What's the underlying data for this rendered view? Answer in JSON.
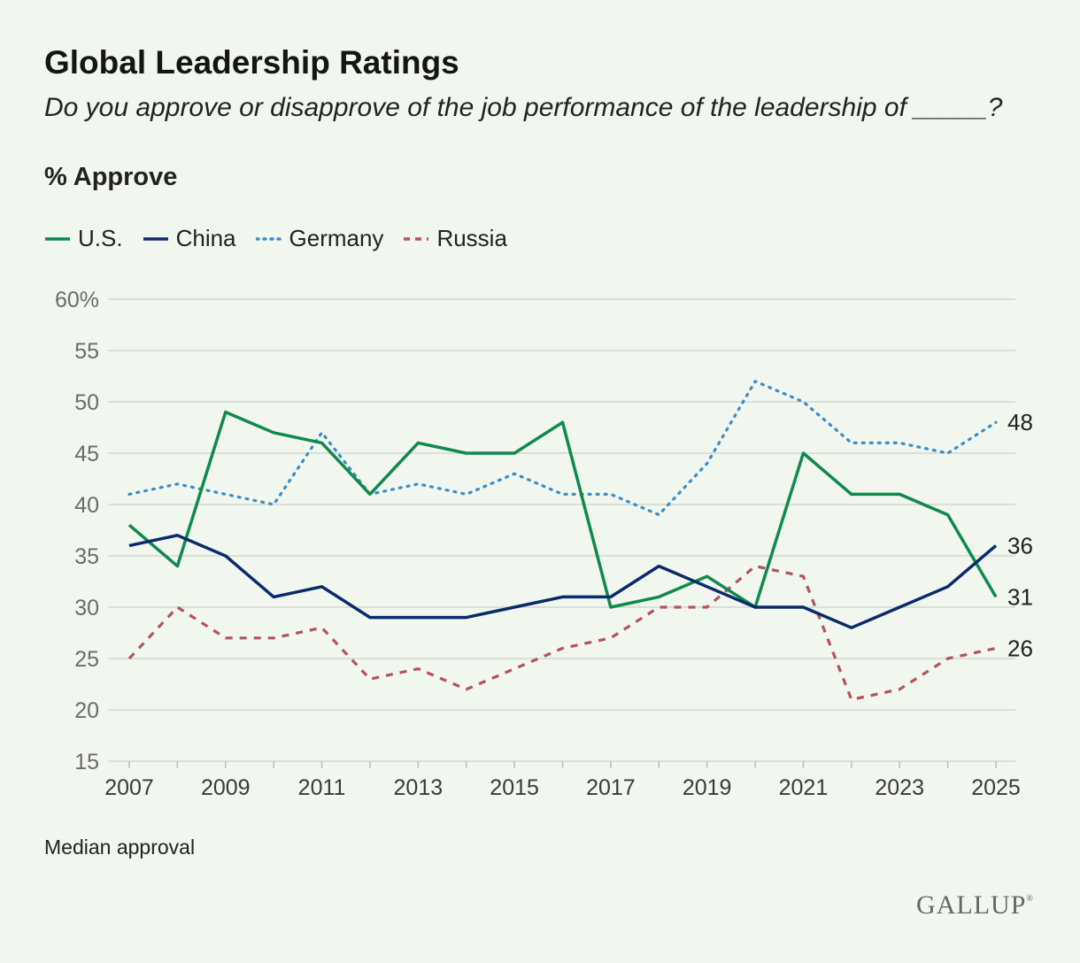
{
  "title": "Global Leadership Ratings",
  "subtitle": "Do you approve or disapprove of the job performance of the leadership of _____?",
  "unit_label": "% Approve",
  "note": "Median approval",
  "logo": "GALLUP",
  "chart_data": {
    "type": "line",
    "x": [
      2007,
      2008,
      2009,
      2010,
      2011,
      2012,
      2013,
      2014,
      2015,
      2016,
      2017,
      2018,
      2019,
      2020,
      2021,
      2022,
      2023,
      2024,
      2025
    ],
    "x_tick_labels": [
      "2007",
      "2009",
      "2011",
      "2013",
      "2015",
      "2017",
      "2019",
      "2021",
      "2023",
      "2025"
    ],
    "y_tick_labels": [
      "60%",
      "55",
      "50",
      "45",
      "40",
      "35",
      "30",
      "25",
      "20",
      "15"
    ],
    "ylim": [
      15,
      60
    ],
    "grid": true,
    "legend_position": "top-left",
    "series": [
      {
        "name": "U.S.",
        "color": "#0e8a4b",
        "style": "solid",
        "values": [
          38,
          34,
          49,
          47,
          46,
          41,
          46,
          45,
          45,
          48,
          30,
          31,
          33,
          30,
          45,
          41,
          41,
          39,
          31
        ],
        "end_label": "31"
      },
      {
        "name": "China",
        "color": "#0b2a6b",
        "style": "solid",
        "values": [
          36,
          37,
          35,
          31,
          32,
          29,
          29,
          29,
          30,
          31,
          31,
          34,
          32,
          30,
          30,
          28,
          30,
          32,
          36
        ],
        "end_label": "36"
      },
      {
        "name": "Germany",
        "color": "#3a8dc9",
        "style": "dotted",
        "values": [
          41,
          42,
          41,
          40,
          47,
          41,
          42,
          41,
          43,
          41,
          41,
          39,
          44,
          52,
          50,
          46,
          46,
          45,
          48
        ],
        "end_label": "48"
      },
      {
        "name": "Russia",
        "color": "#b5525a",
        "style": "dashed",
        "values": [
          25,
          30,
          27,
          27,
          28,
          23,
          24,
          22,
          24,
          26,
          27,
          30,
          30,
          34,
          33,
          21,
          22,
          25,
          26
        ],
        "end_label": "26"
      }
    ]
  }
}
